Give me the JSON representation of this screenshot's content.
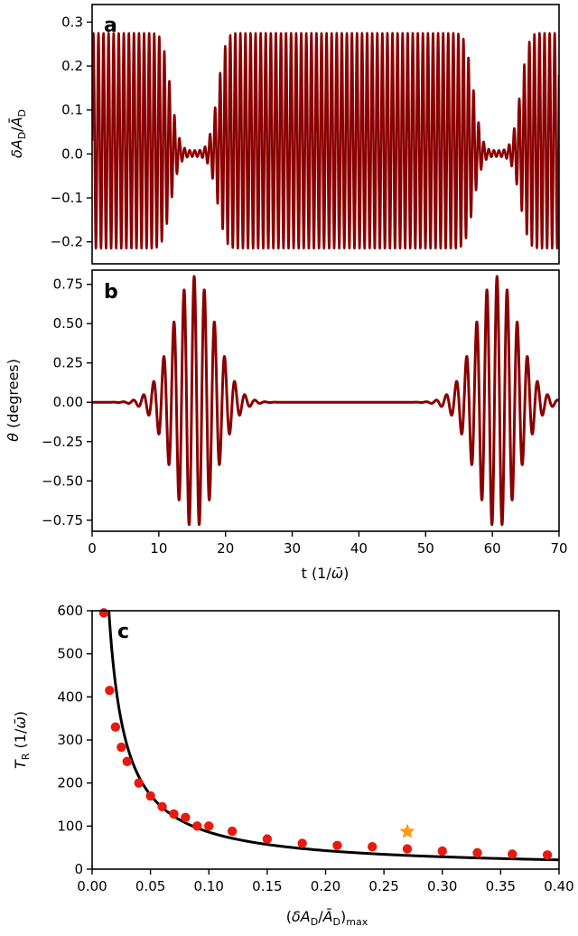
{
  "colors": {
    "wave": "#8b0000",
    "fit_line": "#000000",
    "points": "#e8190e",
    "star": "#ff9a1a"
  },
  "chart_data": [
    {
      "panel": "a",
      "type": "line",
      "ylabel": "δA_D/Ā_D",
      "xlim": [
        0,
        70
      ],
      "ylim": [
        -0.25,
        0.34
      ],
      "yticks": [
        "−0.2",
        "−0.1",
        "0.0",
        "0.1",
        "0.2",
        "0.3"
      ],
      "ytick_values": [
        -0.2,
        -0.1,
        0.0,
        0.1,
        0.2,
        0.3
      ],
      "envelope": {
        "carrier_period": 0.76,
        "upper_max": 0.275,
        "lower_min": -0.215,
        "beat_minima_t": [
          15.3,
          60.7
        ],
        "beat_half_width": 4.0
      },
      "grid": false
    },
    {
      "panel": "b",
      "type": "line",
      "ylabel": "θ (degrees)",
      "xlabel": "t (1/ω̄)",
      "xlim": [
        0,
        70
      ],
      "ylim": [
        -0.82,
        0.84
      ],
      "xticks": [
        "0",
        "10",
        "20",
        "30",
        "40",
        "50",
        "60",
        "70"
      ],
      "xtick_values": [
        0,
        10,
        20,
        30,
        40,
        50,
        60,
        70
      ],
      "yticks": [
        "−0.75",
        "−0.50",
        "−0.25",
        "0.00",
        "0.25",
        "0.50",
        "0.75"
      ],
      "ytick_values": [
        -0.75,
        -0.5,
        -0.25,
        0.0,
        0.25,
        0.5,
        0.75
      ],
      "wave_packets": {
        "centers_t": [
          15.3,
          60.7
        ],
        "amplitude": 0.8,
        "width": 3.2,
        "carrier_period": 1.52
      },
      "grid": false
    },
    {
      "panel": "c",
      "type": "scatter",
      "xlabel": "(δA_D/Ā_D)_max",
      "ylabel": "T_R (1/ω̄)",
      "xlim": [
        0.0,
        0.4
      ],
      "ylim": [
        0,
        600
      ],
      "xticks": [
        "0.00",
        "0.05",
        "0.10",
        "0.15",
        "0.20",
        "0.25",
        "0.30",
        "0.35",
        "0.40"
      ],
      "xtick_values": [
        0.0,
        0.05,
        0.1,
        0.15,
        0.2,
        0.25,
        0.3,
        0.35,
        0.4
      ],
      "yticks": [
        "0",
        "100",
        "200",
        "300",
        "400",
        "500",
        "600"
      ],
      "ytick_values": [
        0,
        100,
        200,
        300,
        400,
        500,
        600
      ],
      "series": [
        {
          "kind": "points",
          "x": [
            0.01,
            0.015,
            0.02,
            0.025,
            0.03,
            0.04,
            0.05,
            0.06,
            0.07,
            0.08,
            0.09,
            0.1,
            0.12,
            0.15,
            0.18,
            0.21,
            0.24,
            0.27,
            0.3,
            0.33,
            0.36,
            0.39
          ],
          "y": [
            595,
            415,
            330,
            283,
            250,
            200,
            170,
            145,
            128,
            120,
            100,
            100,
            88,
            70,
            60,
            55,
            52,
            47,
            42,
            38,
            35,
            33
          ]
        },
        {
          "kind": "fit",
          "formula": "T = 8.6 / x",
          "coef": 8.6
        },
        {
          "kind": "star",
          "x": [
            0.27
          ],
          "y": [
            87
          ]
        }
      ],
      "grid": false
    }
  ]
}
